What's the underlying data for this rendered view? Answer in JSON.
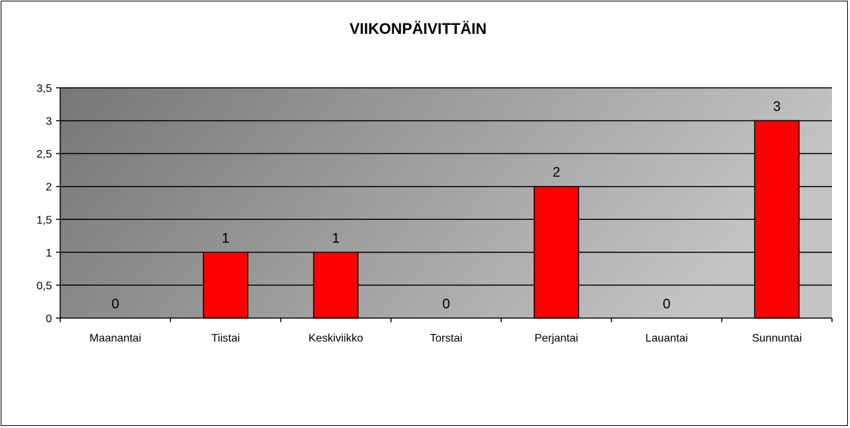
{
  "chart_data": {
    "type": "bar",
    "title": "VIIKONPÄIVITTÄIN",
    "xlabel": "",
    "ylabel": "",
    "categories": [
      "Maanantai",
      "Tiistai",
      "Keskiviikko",
      "Torstai",
      "Perjantai",
      "Lauantai",
      "Sunnuntai"
    ],
    "values": [
      0,
      1,
      1,
      0,
      2,
      0,
      3
    ],
    "data_labels": [
      "0",
      "1",
      "1",
      "0",
      "2",
      "0",
      "3"
    ],
    "ylim": [
      0,
      3.5
    ],
    "yticks": [
      0,
      0.5,
      1,
      1.5,
      2,
      2.5,
      3,
      3.5
    ],
    "ytick_labels": [
      "0",
      "0,5",
      "1",
      "1,5",
      "2",
      "2,5",
      "3",
      "3,5"
    ],
    "grid": true,
    "legend": "none",
    "colors": {
      "bar_fill": "#ff0000",
      "bar_stroke": "#000000",
      "plot_bg_start": "#777777",
      "plot_bg_end": "#c4c4c4",
      "grid": "#000000"
    }
  }
}
